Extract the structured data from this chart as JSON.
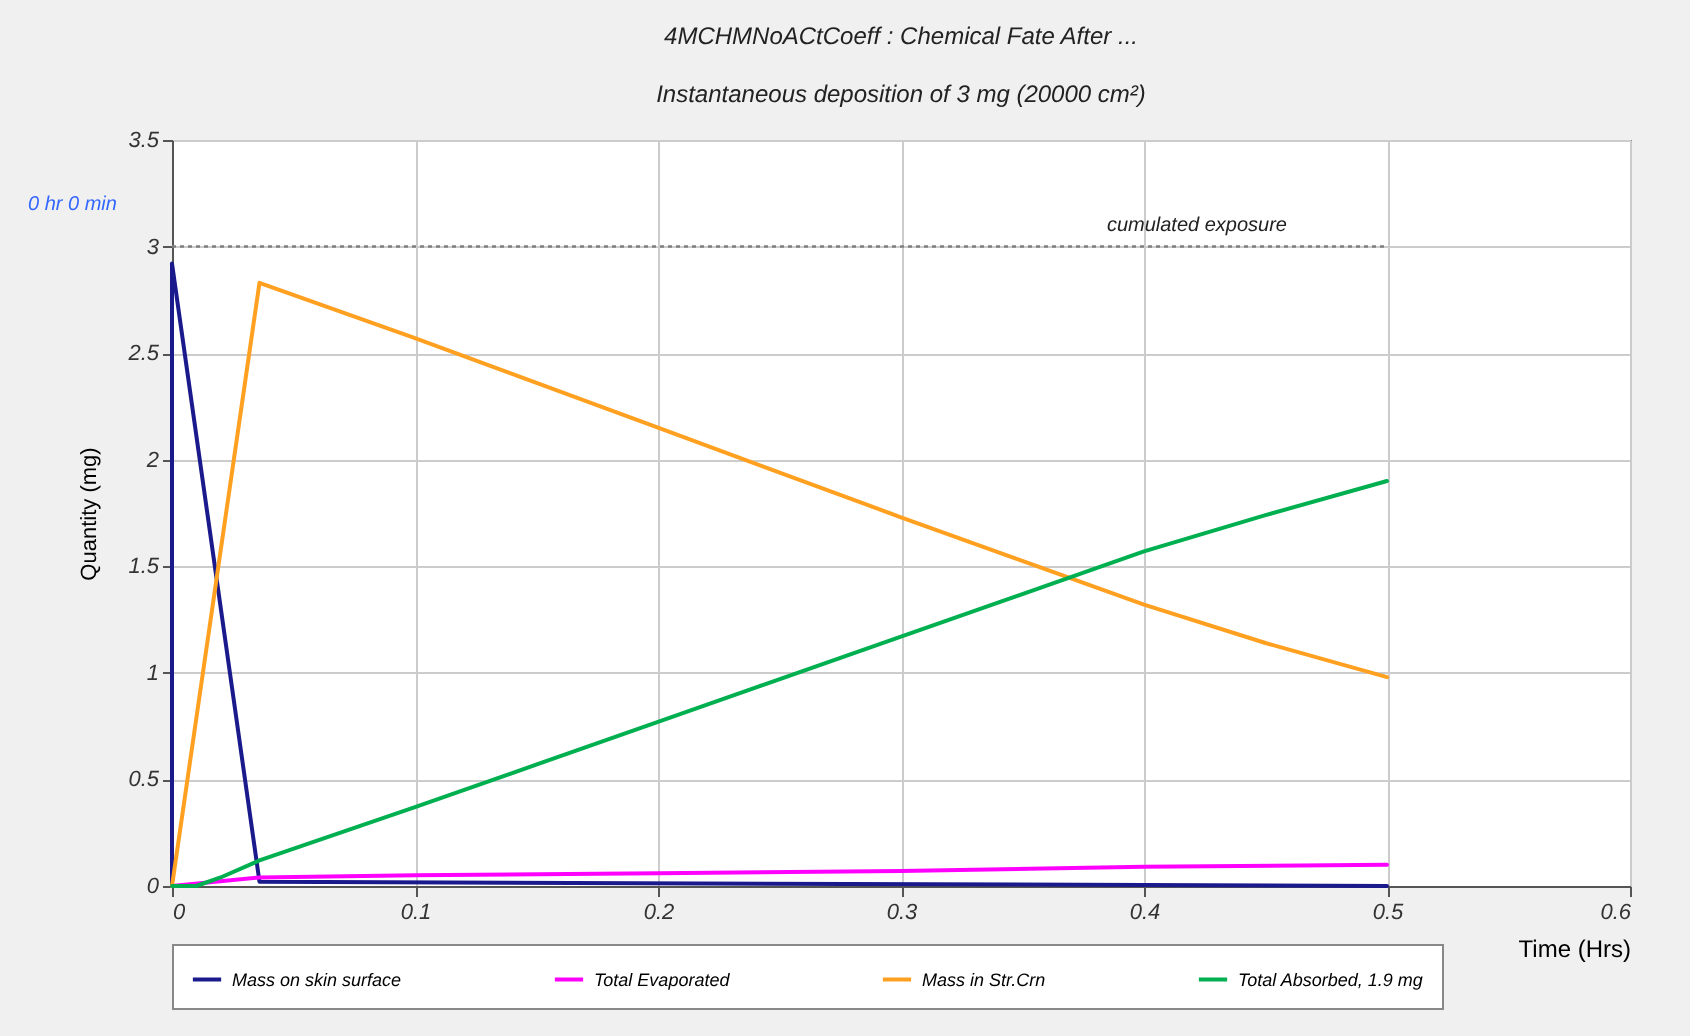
{
  "chart_data": {
    "type": "line",
    "title": "4MCHMNoACtCoeff : Chemical Fate After ...",
    "subtitle": "Instantaneous deposition of 3 mg (20000 cm²)",
    "xlabel": "Time (Hrs)",
    "ylabel": "Quantity (mg)",
    "xlim": [
      0,
      0.6
    ],
    "xticks": [
      0,
      0.1,
      0.2,
      0.3,
      0.4,
      0.5,
      0.6
    ],
    "ylim": [
      0,
      3.5
    ],
    "yticks": [
      0,
      0.5,
      1,
      1.5,
      2,
      2.5,
      3,
      3.5
    ],
    "grid": true,
    "legend": "bottom",
    "ref_lines": [
      {
        "axis": "y",
        "value": 3,
        "label": "cumulated exposure",
        "color": "#808080",
        "line_style": "dotted"
      }
    ],
    "annotations": [
      "0 hr 0 min"
    ],
    "series": [
      {
        "name": "Mass on skin surface",
        "color": "#1a1a8c",
        "x": [
          0,
          0,
          0.036,
          0.5
        ],
        "values": [
          0,
          2.92,
          0.02,
          0
        ]
      },
      {
        "name": "Total Evaporated",
        "color": "#ff00ff",
        "x": [
          0,
          0.036,
          0.1,
          0.2,
          0.3,
          0.4,
          0.5
        ],
        "values": [
          0,
          0.04,
          0.05,
          0.06,
          0.07,
          0.09,
          0.1
        ]
      },
      {
        "name": "Mass in Str.Crn",
        "color": "#ffa020",
        "x": [
          0,
          0.036,
          0.1,
          0.2,
          0.3,
          0.4,
          0.45,
          0.5
        ],
        "values": [
          0,
          2.83,
          2.57,
          2.15,
          1.73,
          1.32,
          1.14,
          0.98
        ]
      },
      {
        "name": "Total Absorbed, 1.9 mg",
        "color": "#00b050",
        "x": [
          0,
          0.01,
          0.02,
          0.036,
          0.1,
          0.2,
          0.3,
          0.4,
          0.45,
          0.5
        ],
        "values": [
          0,
          0,
          0.04,
          0.12,
          0.37,
          0.77,
          1.17,
          1.57,
          1.74,
          1.9
        ]
      }
    ]
  }
}
